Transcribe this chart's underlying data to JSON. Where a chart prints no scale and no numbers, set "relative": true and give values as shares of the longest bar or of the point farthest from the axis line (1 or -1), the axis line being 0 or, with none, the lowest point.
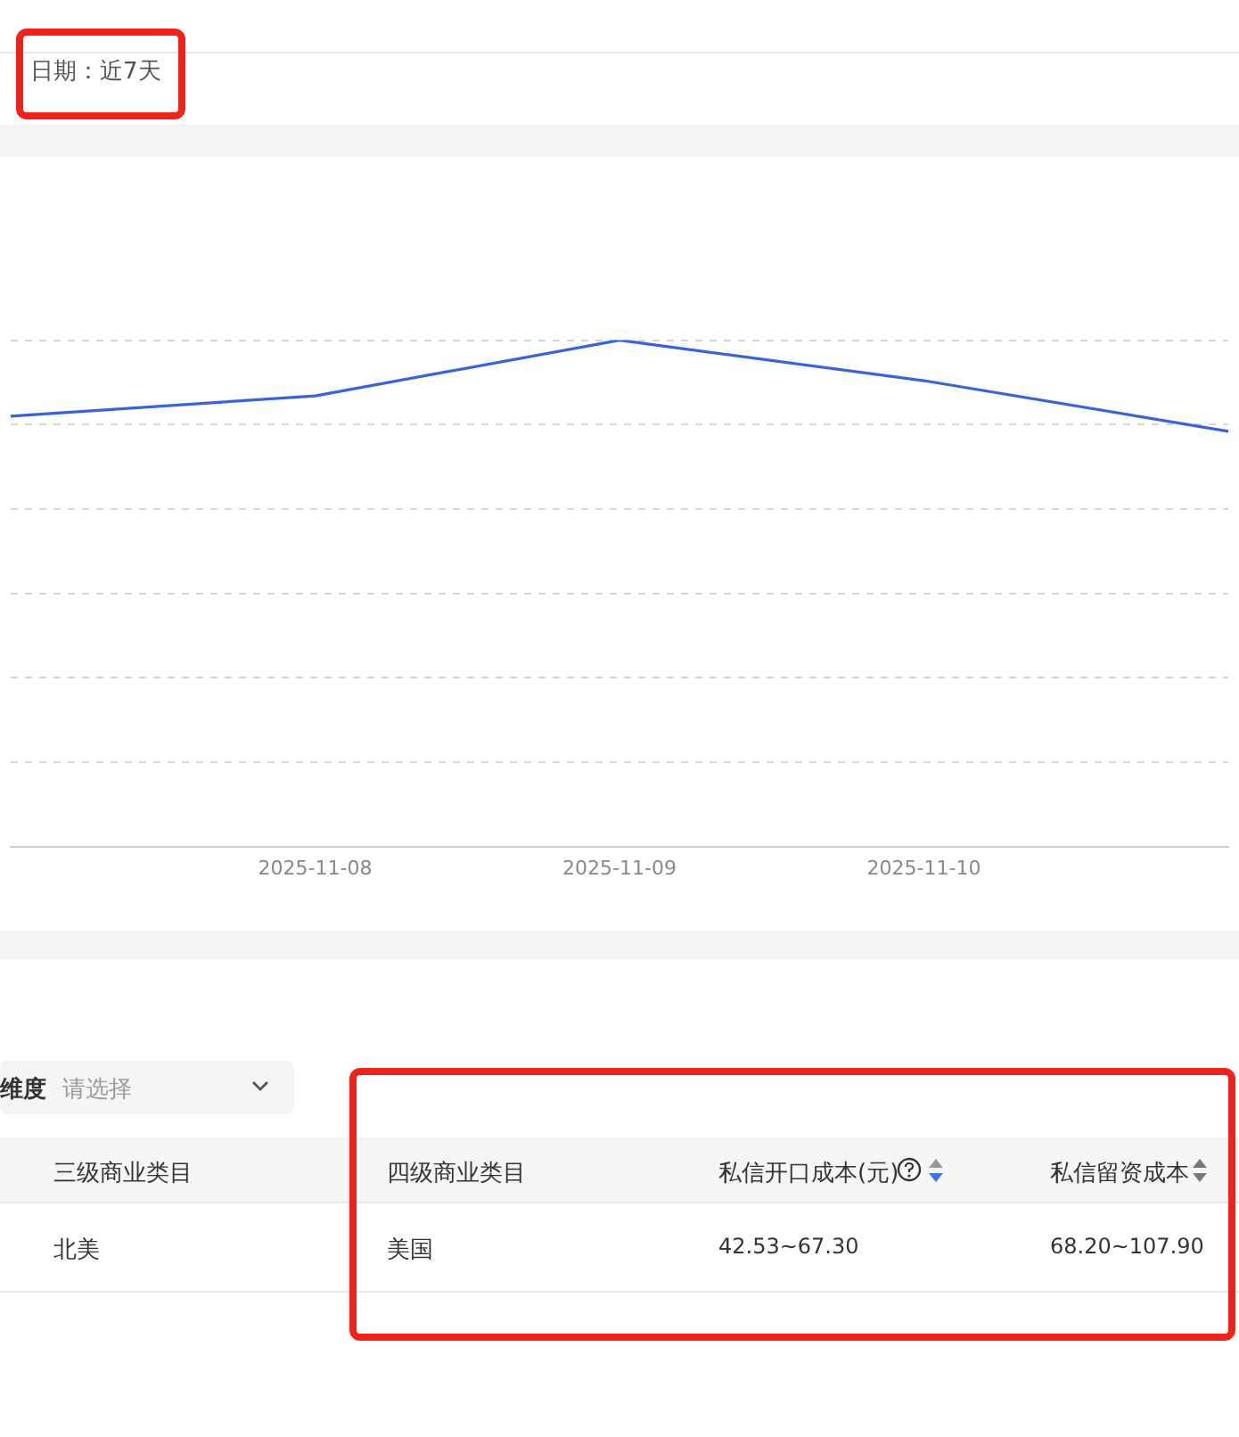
{
  "chart_data": [
    {
      "type": "line",
      "relative": true,
      "categories": [
        null,
        "2025-11-08",
        "2025-11-09",
        "2025-11-10",
        null
      ],
      "series": [
        {
          "color": "#3b63d8",
          "values": [
            0.85,
            0.89,
            1,
            0.92,
            0.82
          ]
        }
      ],
      "grid": "y",
      "legend": false,
      "marker": "none",
      "line_style": "solid",
      "annotations": [
        "日期：近7天"
      ]
    },
    {
      "type": "other",
      "annotations": [
        "维度",
        "请选择",
        "三级商业类目",
        "四级商业类目",
        "私信开口成本(元)",
        "私信留资成本",
        "北美",
        "美国",
        "42.53~67.30",
        "68.20~107.90"
      ]
    }
  ]
}
